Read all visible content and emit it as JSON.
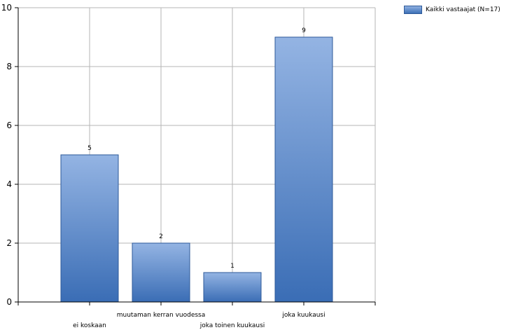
{
  "chart_data": {
    "type": "bar",
    "categories": [
      "ei koskaan",
      "muutaman kerran vuodessa",
      "joka toinen kuukausi",
      "joka kuukausi"
    ],
    "series": [
      {
        "name": "Kaikki vastaajat (N=17)",
        "values": [
          5,
          2,
          1,
          9
        ]
      }
    ],
    "ylim": [
      0,
      10
    ],
    "yticks": [
      0,
      2,
      4,
      6,
      8,
      10
    ],
    "grid": true,
    "legend_position": "top-right",
    "bar_color_top": "#94b4e3",
    "bar_color_bottom": "#3a6db5",
    "bar_border": "#2e5a99"
  }
}
